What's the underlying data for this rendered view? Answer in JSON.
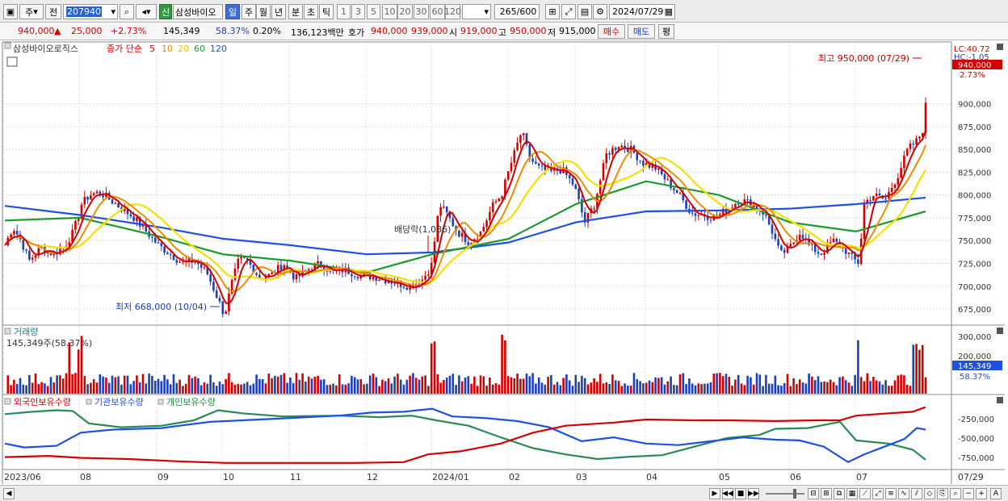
{
  "toolbar": {
    "period_type": "주",
    "prev_label": "전",
    "stock_code": "207940",
    "new_badge": "신",
    "stock_name": "삼성바이오",
    "periods": [
      "일",
      "주",
      "월",
      "년",
      "분",
      "초",
      "틱"
    ],
    "active_period": "일",
    "intervals": [
      "1",
      "3",
      "5",
      "10",
      "20",
      "30",
      "60",
      "120"
    ],
    "count": "265",
    "total": "/600",
    "date": "2024/07/29"
  },
  "quote": {
    "price": "940,000",
    "change_arrow": "▲",
    "change": "25,000",
    "change_pct": "+2.73%",
    "volume": "145,349",
    "vol_ratio": "58.37%",
    "turnover": "0.20%",
    "amount": "136,123백만",
    "ask_label": "호가",
    "ask1": "940,000",
    "ask2": "939,000",
    "open_label": "시",
    "open": "919,000",
    "high_label": "고",
    "high": "950,000",
    "low_label": "저",
    "low": "915,000",
    "buy_label": "매수",
    "sell_label": "매도",
    "eval_label": "평"
  },
  "price_panel": {
    "stock_tab": "삼성바이오로직스",
    "legend_prefix": "종가 단순",
    "ma_periods": [
      "5",
      "10",
      "20",
      "60",
      "120"
    ],
    "ma_colors": [
      "#d40000",
      "#f08c00",
      "#f5e100",
      "#1a9a2a",
      "#2050e0"
    ],
    "lc_label": "LC:40.72",
    "hc_label": "HC:-1.05",
    "current_price": "940,000",
    "current_pct": "2.73%",
    "high_annotation": "최고 950,000 (07/29)",
    "low_annotation": "최저 668,000 (10/04)",
    "dividend_annotation": "배당락(1,086)",
    "y_ticks": [
      "900,000",
      "875,000",
      "850,000",
      "825,000",
      "800,000",
      "775,000",
      "750,000",
      "725,000",
      "700,000",
      "675,000"
    ]
  },
  "volume_panel": {
    "title": "거래량",
    "value_label": "145,349주(58.37%)",
    "y_ticks": [
      "300,000",
      "200,000"
    ],
    "current_value": "145,349",
    "current_pct": "58.37%"
  },
  "holding_panel": {
    "series": [
      "외국인보유수량",
      "기관보유수량",
      "개인보유수량"
    ],
    "colors": [
      "#d40000",
      "#2050e0",
      "#1f8f3f"
    ],
    "y_ticks": [
      "-250,000",
      "-500,000",
      "-750,000"
    ]
  },
  "x_axis": {
    "labels": [
      "2023/06",
      "08",
      "09",
      "10",
      "11",
      "12",
      "2024/01",
      "02",
      "03",
      "04",
      "05",
      "06",
      "07"
    ],
    "end_label": "07/29"
  },
  "chart_data": {
    "type": "line",
    "description_price": "close price with moving averages, daily, 2023/06 to 2024/07/29",
    "x": [
      "2023/06",
      "2023/08",
      "2023/09",
      "2023/10",
      "2023/11",
      "2023/12",
      "2024/01",
      "2024/02",
      "2024/03",
      "2024/04",
      "2024/05",
      "2024/06",
      "2024/07",
      "2024/07/29"
    ],
    "series": [
      {
        "name": "5",
        "values": [
          745000,
          795000,
          745000,
          690000,
          718000,
          710000,
          760000,
          850000,
          800000,
          840000,
          785000,
          740000,
          735000,
          888000
        ]
      },
      {
        "name": "60",
        "values": [
          772000,
          775000,
          755000,
          735000,
          728000,
          715000,
          735000,
          752000,
          790000,
          815000,
          800000,
          770000,
          760000,
          782000
        ]
      },
      {
        "name": "120",
        "values": [
          788000,
          778000,
          765000,
          752000,
          745000,
          735000,
          737000,
          748000,
          770000,
          782000,
          783000,
          785000,
          790000,
          797000
        ]
      }
    ],
    "ylim": [
      660000,
      955000
    ],
    "high": {
      "value": 950000,
      "date": "07/29"
    },
    "low": {
      "value": 668000,
      "date": "10/04"
    }
  }
}
